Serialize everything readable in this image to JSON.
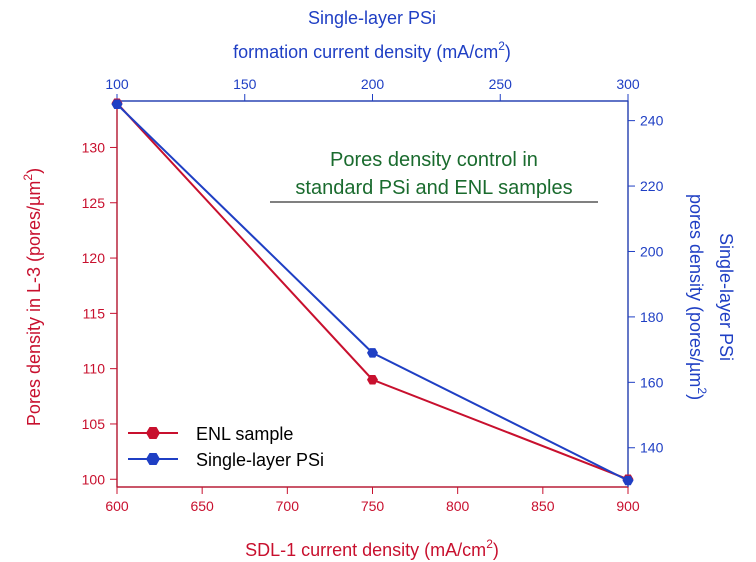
{
  "chart_data": {
    "type": "line",
    "title_lines": [
      "Pores density control in",
      "standard PSi and ENL samples"
    ],
    "bottom_axis": {
      "label_main": "SDL-1 current density (mA/cm",
      "label_sup": "2",
      "label_end": ")",
      "range": [
        600,
        900
      ],
      "ticks": [
        "600",
        "650",
        "700",
        "750",
        "800",
        "850",
        "900"
      ]
    },
    "top_axis": {
      "label_line1": "Single-layer PSi",
      "label_line2_main": "formation current density (mA/cm",
      "label_line2_sup": "2",
      "label_line2_end": ")",
      "range": [
        100,
        300
      ],
      "ticks": [
        "100",
        "150",
        "200",
        "250",
        "300"
      ]
    },
    "left_axis": {
      "label_main": "Pores density in L-3 (pores/µm",
      "label_sup": "2",
      "label_end": ")",
      "range": [
        99.3,
        134.2
      ],
      "ticks": [
        "100",
        "105",
        "110",
        "115",
        "120",
        "125",
        "130"
      ]
    },
    "right_axis": {
      "label_line1": "Single-layer PSi",
      "label_line2_main": "pores density (pores/µm",
      "label_line2_sup": "2",
      "label_line2_end": ")",
      "range": [
        128,
        246
      ],
      "ticks": [
        "140",
        "160",
        "180",
        "200",
        "220",
        "240"
      ]
    },
    "series": [
      {
        "name": "ENL sample",
        "color": "#c8102e",
        "axis": "bottom-left",
        "x": [
          600,
          750,
          900
        ],
        "y": [
          134,
          109,
          100
        ]
      },
      {
        "name": "Single-layer PSi",
        "color": "#1f3fc4",
        "axis": "top-right",
        "x": [
          100,
          200,
          300
        ],
        "y": [
          245,
          169,
          130
        ]
      }
    ],
    "legend_position": "bottom-left",
    "grid": false
  },
  "colors": {
    "red": "#c8102e",
    "blue": "#1f3fc4",
    "title_green": "#1a6b2e",
    "frame": "#000000"
  }
}
